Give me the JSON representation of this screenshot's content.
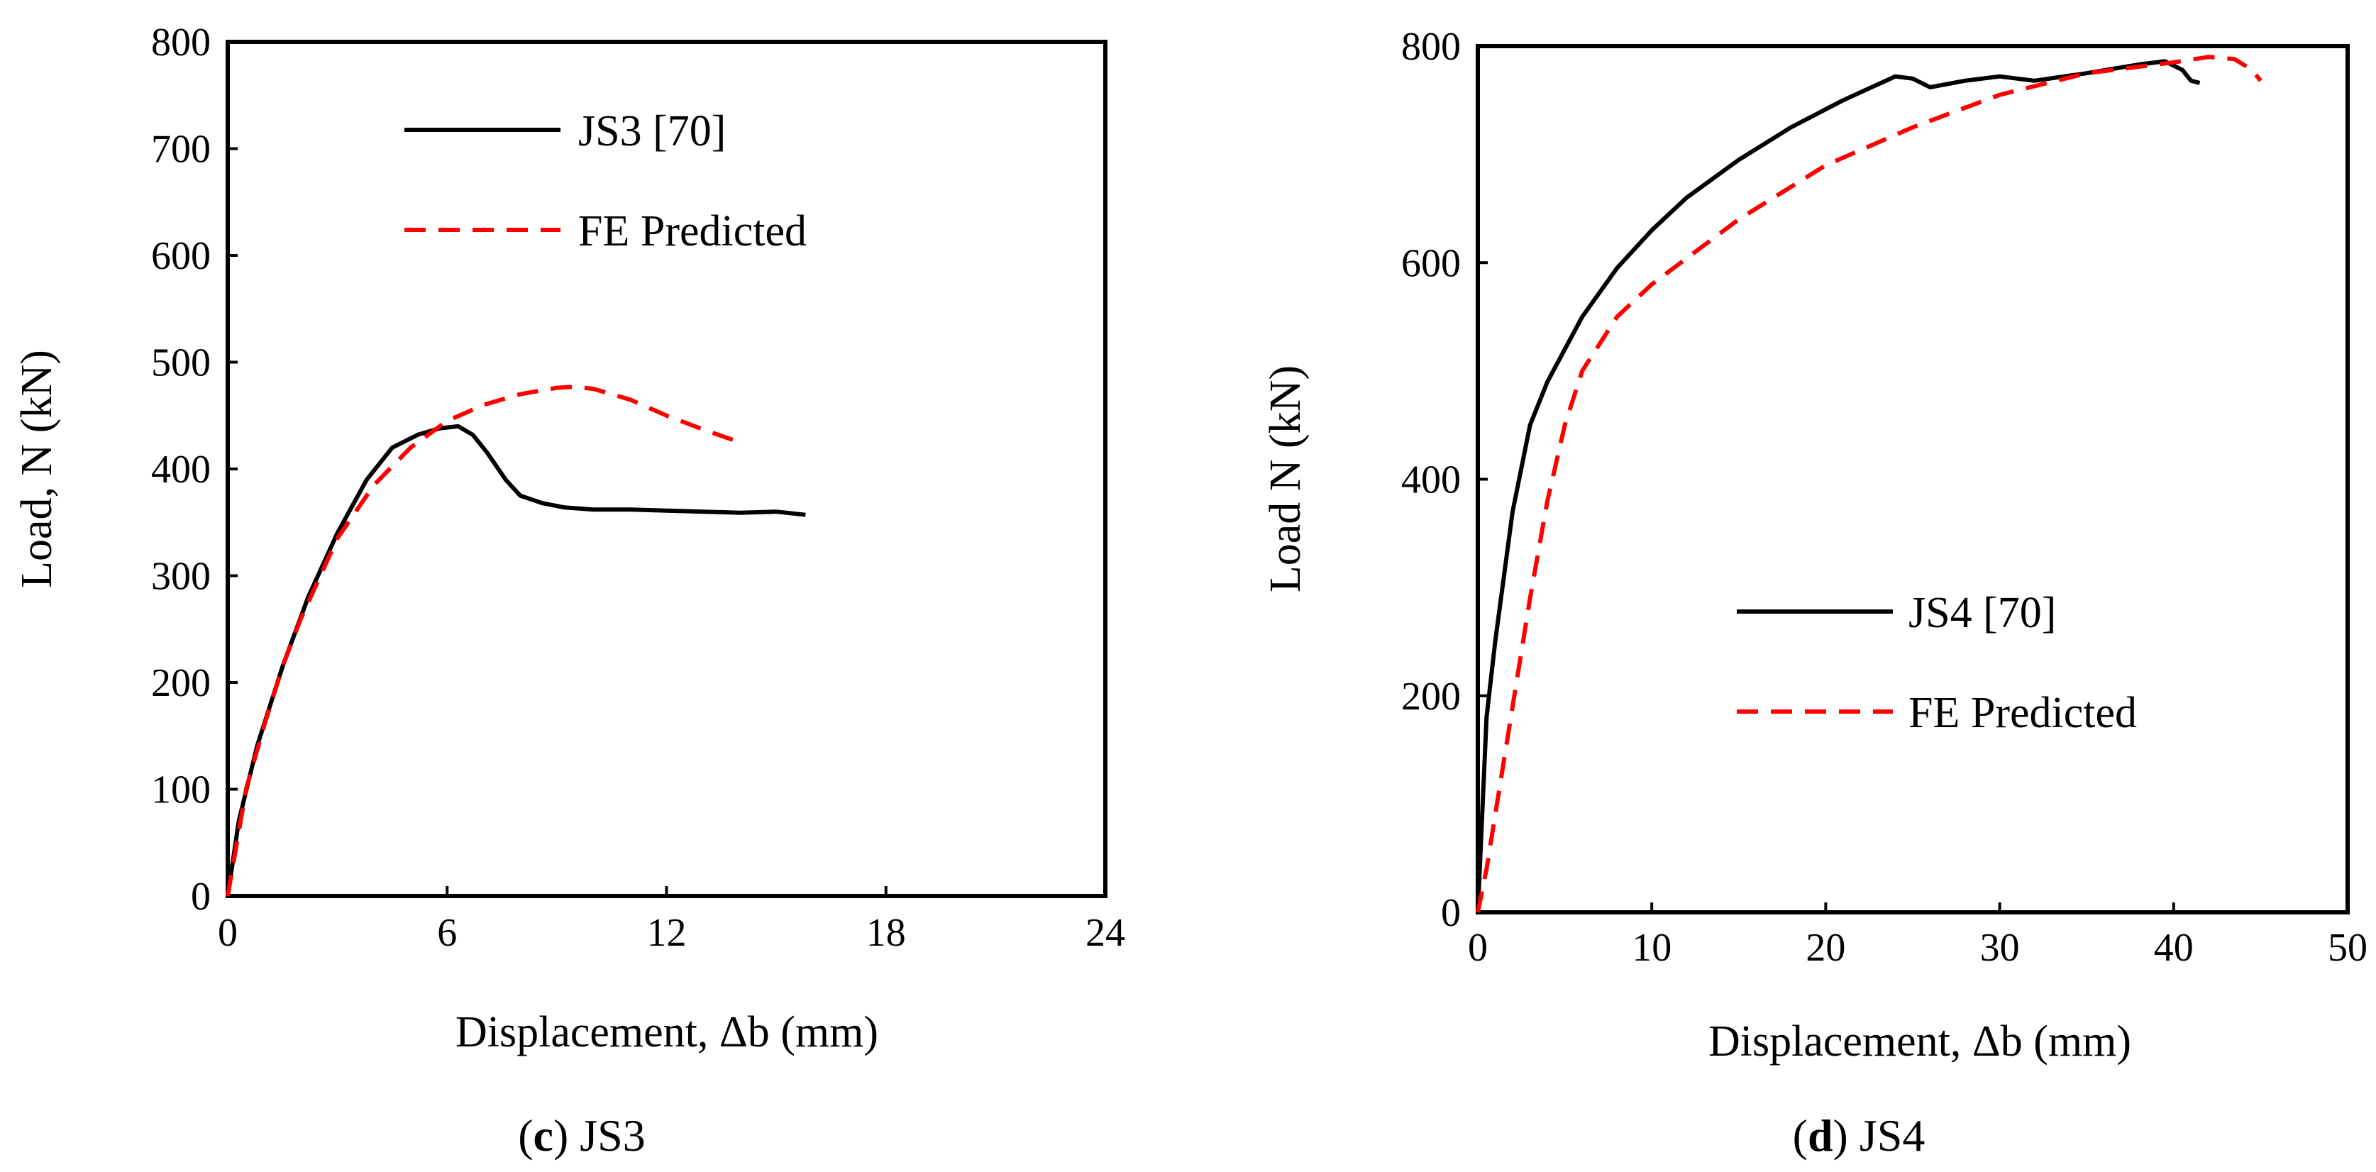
{
  "chart_data": [
    {
      "type": "line",
      "panel_letter": "c",
      "caption": "JS3",
      "xlabel": "Displacement, Δb (mm)",
      "ylabel": "Load, N (kN)",
      "xlim": [
        0,
        24
      ],
      "ylim": [
        0,
        800
      ],
      "xticks": [
        0,
        6,
        12,
        18,
        24
      ],
      "yticks": [
        0,
        100,
        200,
        300,
        400,
        500,
        600,
        700,
        800
      ],
      "legend_position": "top-center",
      "series": [
        {
          "name": "JS3 [70]",
          "color": "#000000",
          "style": "solid",
          "x": [
            0,
            0.3,
            0.8,
            1.5,
            2.2,
            3.0,
            3.8,
            4.5,
            5.2,
            5.8,
            6.3,
            6.7,
            7.1,
            7.6,
            8.0,
            8.6,
            9.2,
            10.0,
            11.0,
            12.0,
            13.0,
            14.0,
            15.0,
            15.8
          ],
          "y": [
            0,
            70,
            140,
            215,
            280,
            340,
            390,
            420,
            432,
            438,
            440,
            432,
            415,
            390,
            375,
            368,
            364,
            362,
            362,
            361,
            360,
            359,
            360,
            357
          ]
        },
        {
          "name": "FE Predicted",
          "color": "#ff0000",
          "style": "dashed",
          "x": [
            0,
            0.5,
            1.0,
            1.5,
            2.0,
            3.0,
            4.0,
            5.0,
            6.0,
            7.0,
            8.0,
            9.0,
            9.5,
            10.0,
            11.0,
            12.0,
            13.0,
            14.0
          ],
          "y": [
            0,
            100,
            160,
            215,
            260,
            335,
            385,
            420,
            445,
            460,
            470,
            476,
            477,
            475,
            465,
            450,
            437,
            425
          ]
        }
      ]
    },
    {
      "type": "line",
      "panel_letter": "d",
      "caption": "JS4",
      "xlabel": "Displacement, Δb (mm)",
      "ylabel": "Load N (kN)",
      "xlim": [
        0,
        50
      ],
      "ylim": [
        0,
        800
      ],
      "xticks": [
        0,
        10,
        20,
        30,
        40,
        50
      ],
      "yticks": [
        0,
        200,
        400,
        600,
        800
      ],
      "legend_position": "center-right",
      "series": [
        {
          "name": "JS4 [70]",
          "color": "#000000",
          "style": "solid",
          "x": [
            0,
            0.5,
            1.0,
            2.0,
            3.0,
            4.0,
            5.0,
            6.0,
            8.0,
            10.0,
            12.0,
            15.0,
            18.0,
            21.0,
            24.0,
            25.0,
            26.0,
            28.0,
            30.0,
            32.0,
            35.0,
            38.0,
            39.5,
            40.5,
            41.0,
            41.5
          ],
          "y": [
            0,
            180,
            250,
            370,
            450,
            490,
            520,
            550,
            595,
            630,
            660,
            695,
            725,
            750,
            772,
            770,
            762,
            768,
            772,
            768,
            775,
            783,
            786,
            778,
            768,
            766
          ]
        },
        {
          "name": "FE Predicted",
          "color": "#ff0000",
          "style": "dashed",
          "x": [
            0,
            0.5,
            1.0,
            2.0,
            3.0,
            4.0,
            5.0,
            6.0,
            8.0,
            10.0,
            15.0,
            20.0,
            25.0,
            30.0,
            35.0,
            40.0,
            42.0,
            43.5,
            44.5,
            45.0
          ],
          "y": [
            0,
            40,
            90,
            190,
            290,
            380,
            450,
            500,
            550,
            580,
            640,
            690,
            725,
            755,
            775,
            785,
            790,
            788,
            778,
            768
          ]
        }
      ]
    }
  ]
}
